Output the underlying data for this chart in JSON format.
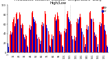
{
  "title_fontsize": 3.8,
  "background_color": "#ffffff",
  "highs": [
    35,
    28,
    32,
    42,
    38,
    45,
    55,
    60,
    52,
    65,
    70,
    75,
    72,
    80,
    78,
    82,
    85,
    88,
    90,
    92,
    88,
    85,
    80,
    75,
    70,
    68,
    62,
    58,
    55,
    50,
    45,
    40,
    38,
    35,
    32,
    28,
    38,
    45,
    52,
    58,
    65,
    72,
    80,
    85,
    88,
    92,
    88,
    82,
    75,
    68,
    62,
    55,
    48,
    42,
    38,
    32,
    28,
    35,
    42,
    50,
    58,
    65,
    72,
    80,
    88,
    92,
    88,
    82,
    75,
    68,
    60,
    52,
    45,
    38,
    32,
    28,
    25,
    30,
    38,
    45,
    52,
    60,
    68,
    75,
    80,
    85,
    88,
    90,
    85,
    78,
    70,
    62,
    55,
    48,
    42,
    38,
    32,
    28,
    32,
    38,
    45,
    52,
    60,
    68,
    75,
    82,
    88,
    92,
    88,
    82,
    75,
    68,
    60,
    52,
    45,
    38,
    32,
    28,
    35,
    42,
    50,
    58,
    65,
    72,
    80,
    88,
    92,
    88,
    82,
    75,
    68,
    60,
    52,
    45,
    38,
    32,
    28,
    35,
    42,
    50,
    58,
    65,
    72,
    78,
    82,
    85,
    88,
    90,
    88,
    85,
    80,
    72,
    65,
    58,
    52,
    45,
    38,
    32,
    28,
    35,
    42,
    50,
    58,
    65,
    72,
    80,
    88,
    92,
    88,
    82,
    75,
    65,
    55,
    45,
    38,
    32,
    28,
    25
  ],
  "lows": [
    20,
    12,
    15,
    25,
    20,
    28,
    38,
    42,
    35,
    48,
    52,
    58,
    55,
    62,
    60,
    65,
    68,
    70,
    72,
    75,
    70,
    68,
    62,
    58,
    52,
    50,
    45,
    40,
    38,
    32,
    28,
    22,
    20,
    18,
    15,
    12,
    20,
    28,
    35,
    42,
    48,
    55,
    62,
    68,
    70,
    75,
    70,
    65,
    58,
    52,
    45,
    38,
    30,
    25,
    20,
    15,
    12,
    18,
    25,
    32,
    40,
    48,
    55,
    62,
    70,
    75,
    70,
    65,
    58,
    52,
    44,
    36,
    28,
    20,
    15,
    12,
    8,
    14,
    22,
    28,
    35,
    42,
    50,
    58,
    62,
    68,
    70,
    72,
    68,
    60,
    52,
    45,
    38,
    30,
    25,
    20,
    15,
    12,
    16,
    22,
    28,
    35,
    42,
    50,
    58,
    65,
    70,
    75,
    70,
    65,
    58,
    52,
    44,
    36,
    28,
    20,
    15,
    12,
    18,
    25,
    32,
    40,
    48,
    55,
    62,
    70,
    75,
    70,
    65,
    58,
    52,
    44,
    36,
    28,
    20,
    15,
    12,
    18,
    25,
    32,
    40,
    48,
    55,
    60,
    65,
    68,
    70,
    72,
    70,
    68,
    62,
    55,
    48,
    42,
    36,
    28,
    20,
    15,
    12,
    18,
    25,
    32,
    40,
    48,
    55,
    62,
    70,
    75,
    70,
    65,
    58,
    48,
    38,
    28,
    20,
    15,
    12,
    8
  ],
  "high_color": "#ff0000",
  "low_color": "#0000cc",
  "tick_fontsize": 2.5,
  "ylim": [
    0,
    100
  ],
  "yticks": [
    0,
    20,
    40,
    60,
    80,
    100
  ],
  "legend_high_color": "#ff0000",
  "legend_low_color": "#0000cc",
  "dashed_lines": [
    100,
    110
  ],
  "x_label_step": 10
}
